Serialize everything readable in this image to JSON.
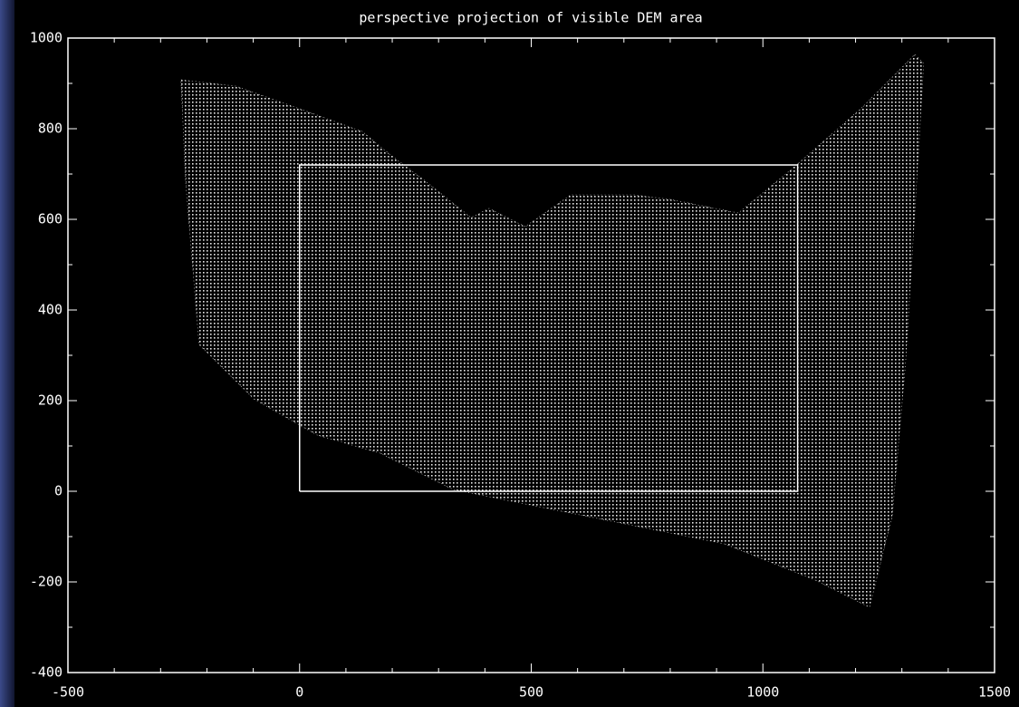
{
  "chart_data": {
    "type": "area",
    "title": "perspective projection of visible DEM area",
    "series": [
      {
        "color": "#ffffff",
        "x": [
          -256,
          -138,
          0,
          135,
          194,
          272,
          370,
          409,
          487,
          585,
          722,
          800,
          947,
          1054,
          1211,
          1328,
          1347,
          1338,
          1308,
          1279,
          1230,
          1113,
          917,
          722,
          526,
          331,
          174,
          38,
          -99,
          -217,
          -246
        ],
        "values": [
          908,
          894,
          844,
          794,
          744,
          684,
          604,
          624,
          584,
          654,
          654,
          644,
          614,
          704,
          844,
          964,
          944,
          784,
          284,
          -56,
          -256,
          -196,
          -116,
          -76,
          -36,
          4,
          84,
          124,
          204,
          324,
          684
        ]
      },
      {
        "color": "#ffffff",
        "outline": true,
        "x": [
          0,
          1075,
          1075,
          0,
          0
        ],
        "values": [
          0,
          0,
          720,
          720,
          0
        ]
      }
    ],
    "xlim": [
      -500,
      1500
    ],
    "xticks": [
      -500,
      0,
      500,
      1000,
      1500
    ],
    "ylim": [
      -400,
      1000
    ],
    "yticks": [
      -400,
      -200,
      0,
      200,
      400,
      600,
      800,
      1000
    ]
  }
}
